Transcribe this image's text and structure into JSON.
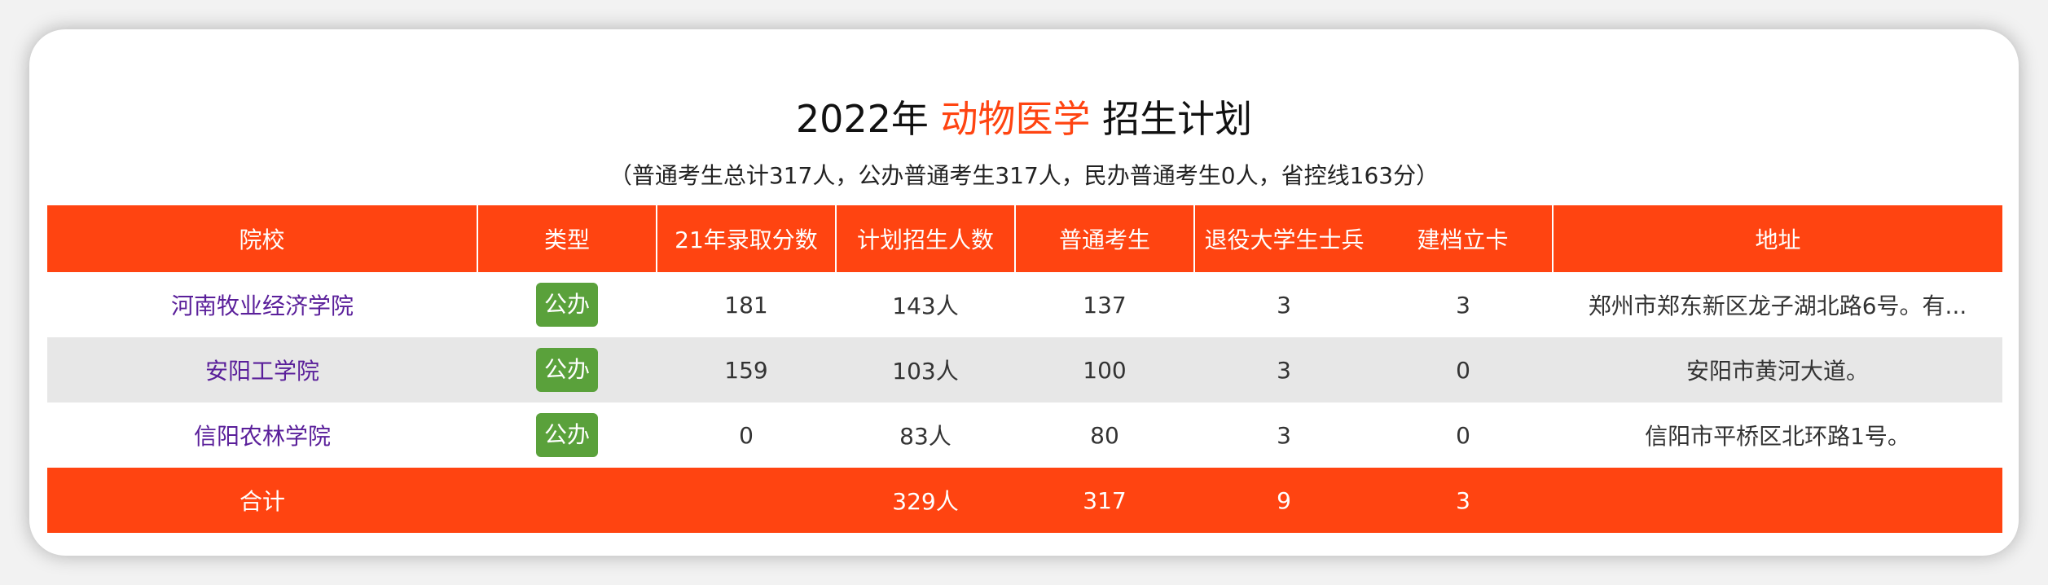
{
  "header": {
    "title_prefix": "2022年 ",
    "title_highlight": "动物医学",
    "title_suffix": " 招生计划",
    "subtitle": "（普通考生总计317人，公办普通考生317人，民办普通考生0人，省控线163分）",
    "highlight_color": "#ff4411"
  },
  "table": {
    "columns": [
      "院校",
      "类型",
      "21年录取分数",
      "计划招生人数",
      "普通考生",
      "退役大学生士兵",
      "建档立卡",
      "地址"
    ],
    "rows": [
      {
        "school": "河南牧业经济学院",
        "type": "公办",
        "score_21": "181",
        "plan": "143人",
        "regular": "137",
        "veterans": "3",
        "poverty": "3",
        "address": "郑州市郑东新区龙子湖北路6号。有..."
      },
      {
        "school": "安阳工学院",
        "type": "公办",
        "score_21": "159",
        "plan": "103人",
        "regular": "100",
        "veterans": "3",
        "poverty": "0",
        "address": "安阳市黄河大道。"
      },
      {
        "school": "信阳农林学院",
        "type": "公办",
        "score_21": "0",
        "plan": "83人",
        "regular": "80",
        "veterans": "3",
        "poverty": "0",
        "address": "信阳市平桥区北环路1号。"
      }
    ],
    "total": {
      "label": "合计",
      "plan": "329人",
      "regular": "317",
      "veterans": "9",
      "poverty": "3"
    }
  },
  "colors": {
    "header_bg": "#ff4411",
    "badge_bg": "#5aa13b",
    "school_link": "#5a1f9a",
    "alt_row_bg": "#e7e7e7"
  }
}
